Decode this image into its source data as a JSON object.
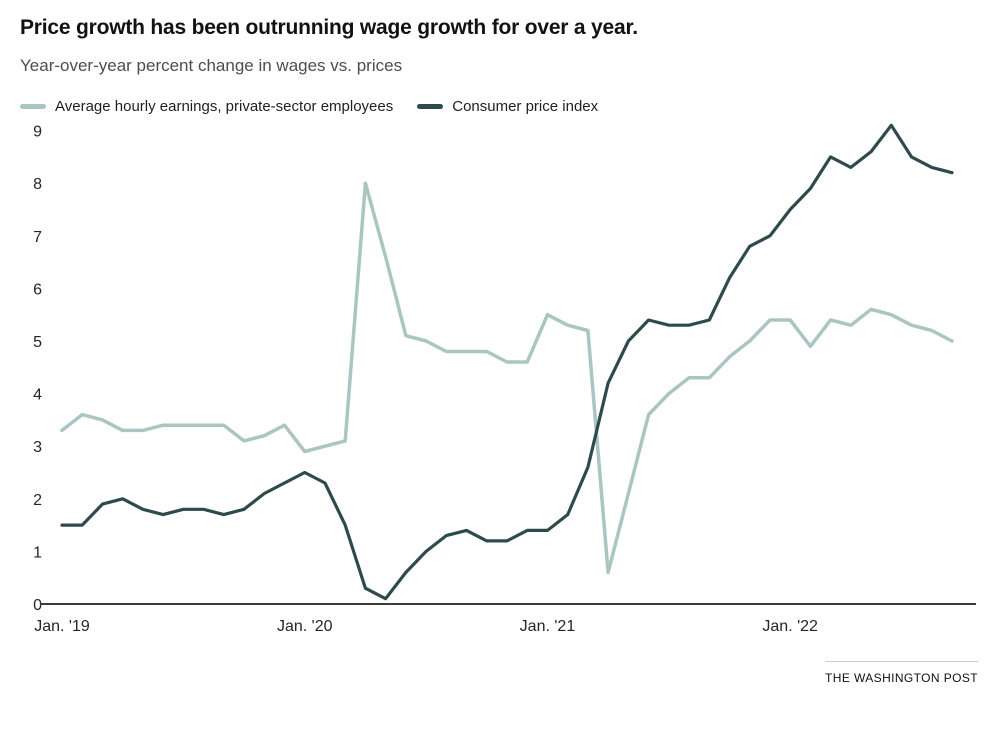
{
  "header": {
    "title": "Price growth has been outrunning wage growth for over a year.",
    "subtitle": "Year-over-year percent change in wages vs. prices"
  },
  "legend": [
    {
      "label": "Average hourly earnings, private-sector employees",
      "color": "#a9c6c2"
    },
    {
      "label": "Consumer price index",
      "color": "#2e4a4c"
    }
  ],
  "footer": {
    "credit": "THE WASHINGTON POST"
  },
  "chart_data": {
    "type": "line",
    "title": "Price growth has been outrunning wage growth for over a year.",
    "subtitle": "Year-over-year percent change in wages vs. prices",
    "ylabel": "Year-over-year percent change",
    "ylim": [
      0,
      9
    ],
    "y_ticks": [
      0,
      1,
      2,
      3,
      4,
      5,
      6,
      7,
      8,
      9
    ],
    "grid": false,
    "legend_position": "top",
    "x": [
      "2019-01",
      "2019-02",
      "2019-03",
      "2019-04",
      "2019-05",
      "2019-06",
      "2019-07",
      "2019-08",
      "2019-09",
      "2019-10",
      "2019-11",
      "2019-12",
      "2020-01",
      "2020-02",
      "2020-03",
      "2020-04",
      "2020-05",
      "2020-06",
      "2020-07",
      "2020-08",
      "2020-09",
      "2020-10",
      "2020-11",
      "2020-12",
      "2021-01",
      "2021-02",
      "2021-03",
      "2021-04",
      "2021-05",
      "2021-06",
      "2021-07",
      "2021-08",
      "2021-09",
      "2021-10",
      "2021-11",
      "2021-12",
      "2022-01",
      "2022-02",
      "2022-03",
      "2022-04",
      "2022-05",
      "2022-06",
      "2022-07",
      "2022-08",
      "2022-09"
    ],
    "x_ticks": [
      {
        "index": 0,
        "label": "Jan. '19"
      },
      {
        "index": 12,
        "label": "Jan. '20"
      },
      {
        "index": 24,
        "label": "Jan. '21"
      },
      {
        "index": 36,
        "label": "Jan. '22"
      }
    ],
    "series": [
      {
        "name": "Average hourly earnings, private-sector employees",
        "color": "#a9c6c2",
        "stroke_width": 3.5,
        "values": [
          3.3,
          3.6,
          3.5,
          3.3,
          3.3,
          3.4,
          3.4,
          3.4,
          3.4,
          3.1,
          3.2,
          3.4,
          2.9,
          3.0,
          3.1,
          8.0,
          6.6,
          5.1,
          5.0,
          4.8,
          4.8,
          4.8,
          4.6,
          4.6,
          5.5,
          5.3,
          5.2,
          0.6,
          2.1,
          3.6,
          4.0,
          4.3,
          4.3,
          4.7,
          5.0,
          5.4,
          5.4,
          4.9,
          5.4,
          5.3,
          5.6,
          5.5,
          5.3,
          5.2,
          5.0
        ]
      },
      {
        "name": "Consumer price index",
        "color": "#2e4a4c",
        "stroke_width": 3.2,
        "values": [
          1.5,
          1.5,
          1.9,
          2.0,
          1.8,
          1.7,
          1.8,
          1.8,
          1.7,
          1.8,
          2.1,
          2.3,
          2.5,
          2.3,
          1.5,
          0.3,
          0.1,
          0.6,
          1.0,
          1.3,
          1.4,
          1.2,
          1.2,
          1.4,
          1.4,
          1.7,
          2.6,
          4.2,
          5.0,
          5.4,
          5.3,
          5.3,
          5.4,
          6.2,
          6.8,
          7.0,
          7.5,
          7.9,
          8.5,
          8.3,
          8.6,
          9.1,
          8.5,
          8.3,
          8.2
        ]
      }
    ]
  }
}
